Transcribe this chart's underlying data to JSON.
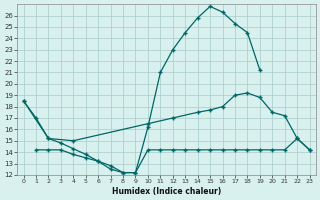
{
  "xlabel": "Humidex (Indice chaleur)",
  "background_color": "#d8f0ee",
  "grid_color": "#a8ccc8",
  "line_color": "#006666",
  "xlim": [
    -0.5,
    23.5
  ],
  "ylim": [
    12,
    27
  ],
  "yticks": [
    12,
    13,
    14,
    15,
    16,
    17,
    18,
    19,
    20,
    21,
    22,
    23,
    24,
    25,
    26
  ],
  "xticks": [
    0,
    1,
    2,
    3,
    4,
    5,
    6,
    7,
    8,
    9,
    10,
    11,
    12,
    13,
    14,
    15,
    16,
    17,
    18,
    19,
    20,
    21,
    22,
    23
  ],
  "line1_x": [
    0,
    1,
    2,
    3,
    4,
    5,
    6,
    7,
    8,
    9,
    10,
    11,
    12,
    13,
    14,
    15,
    16,
    17,
    18,
    19
  ],
  "line1_y": [
    18.5,
    17.0,
    15.2,
    14.8,
    14.3,
    13.8,
    13.2,
    12.5,
    12.2,
    12.2,
    16.2,
    21.0,
    23.0,
    24.5,
    25.8,
    26.8,
    26.3,
    25.3,
    24.5,
    21.2
  ],
  "line2_x": [
    0,
    2,
    4,
    10,
    12,
    14,
    15,
    16,
    17,
    18,
    19,
    20,
    21,
    22,
    23
  ],
  "line2_y": [
    18.5,
    15.2,
    15.0,
    16.5,
    17.0,
    17.5,
    17.7,
    18.0,
    19.0,
    19.2,
    18.8,
    17.5,
    17.2,
    15.2,
    14.2
  ],
  "line3_x": [
    1,
    2,
    3,
    4,
    5,
    6,
    7,
    8,
    9,
    10,
    11,
    12,
    13,
    14,
    15,
    16,
    17,
    18,
    19,
    20,
    21,
    22,
    23
  ],
  "line3_y": [
    14.2,
    14.2,
    14.2,
    13.8,
    13.5,
    13.2,
    12.8,
    12.2,
    12.2,
    14.2,
    14.2,
    14.2,
    14.2,
    14.2,
    14.2,
    14.2,
    14.2,
    14.2,
    14.2,
    14.2,
    14.2,
    15.2,
    14.2
  ]
}
